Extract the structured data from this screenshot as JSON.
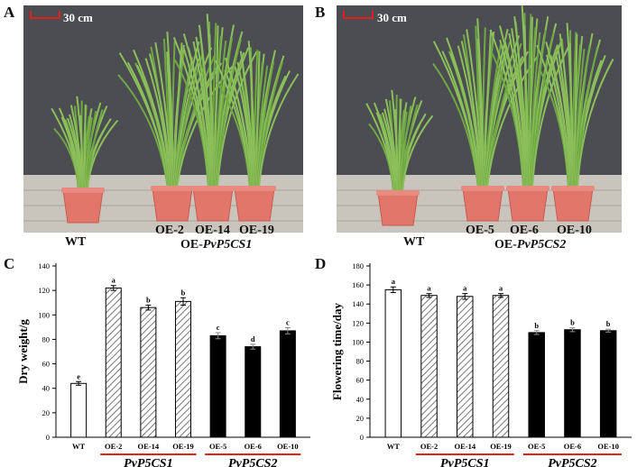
{
  "panels": {
    "A": {
      "letter": "A",
      "scale_bar": "30 cm",
      "wt_label": "WT",
      "line_labels": [
        "OE-2",
        "OE-14",
        "OE-19"
      ],
      "group_prefix": "OE-",
      "group_gene": "PvP5CS1"
    },
    "B": {
      "letter": "B",
      "scale_bar": "30 cm",
      "wt_label": "WT",
      "line_labels": [
        "OE-5",
        "OE-6",
        "OE-10"
      ],
      "group_prefix": "OE-",
      "group_gene": "PvP5CS2"
    },
    "C": {
      "letter": "C"
    },
    "D": {
      "letter": "D"
    }
  },
  "colors": {
    "wall": "#4b4d52",
    "ground": "#c9c5bd",
    "pot": "#e2766b",
    "grass": "#8bbf5a",
    "underline": "#e0221b",
    "bar_hatch": "#555555",
    "bar_solid": "#000000"
  },
  "chart_data": [
    {
      "type": "bar",
      "categories": [
        "WT",
        "OE-2",
        "OE-14",
        "OE-19",
        "OE-5",
        "OE-6",
        "OE-10"
      ],
      "values": [
        44,
        122,
        106,
        111,
        83,
        74,
        87
      ],
      "errors": [
        1.5,
        2,
        2,
        3,
        2.5,
        2,
        2.5
      ],
      "letters": [
        "e",
        "a",
        "b",
        "b",
        "c",
        "d",
        "c"
      ],
      "fills": [
        "white",
        "hatch",
        "hatch",
        "hatch",
        "black",
        "black",
        "black"
      ],
      "ylabel": "Dry weight/g",
      "ylim": [
        0,
        140
      ],
      "yticks": [
        0,
        20,
        40,
        60,
        80,
        100,
        120,
        140
      ],
      "groups": [
        {
          "label": "PvP5CS1",
          "from": 1,
          "to": 3
        },
        {
          "label": "PvP5CS2",
          "from": 4,
          "to": 6
        }
      ]
    },
    {
      "type": "bar",
      "categories": [
        "WT",
        "OE-2",
        "OE-14",
        "OE-19",
        "OE-5",
        "OE-6",
        "OE-10"
      ],
      "values": [
        155,
        149,
        148,
        149,
        110,
        113,
        112
      ],
      "errors": [
        3,
        2,
        3,
        2,
        2,
        2,
        1.5
      ],
      "letters": [
        "a",
        "a",
        "a",
        "a",
        "b",
        "b",
        "b"
      ],
      "fills": [
        "white",
        "hatch",
        "hatch",
        "hatch",
        "black",
        "black",
        "black"
      ],
      "ylabel": "Flowering time/day",
      "ylim": [
        0,
        180
      ],
      "yticks": [
        0,
        20,
        40,
        60,
        80,
        100,
        120,
        140,
        160,
        180
      ],
      "groups": [
        {
          "label": "PvP5CS1",
          "from": 1,
          "to": 3
        },
        {
          "label": "PvP5CS2",
          "from": 4,
          "to": 6
        }
      ]
    }
  ]
}
